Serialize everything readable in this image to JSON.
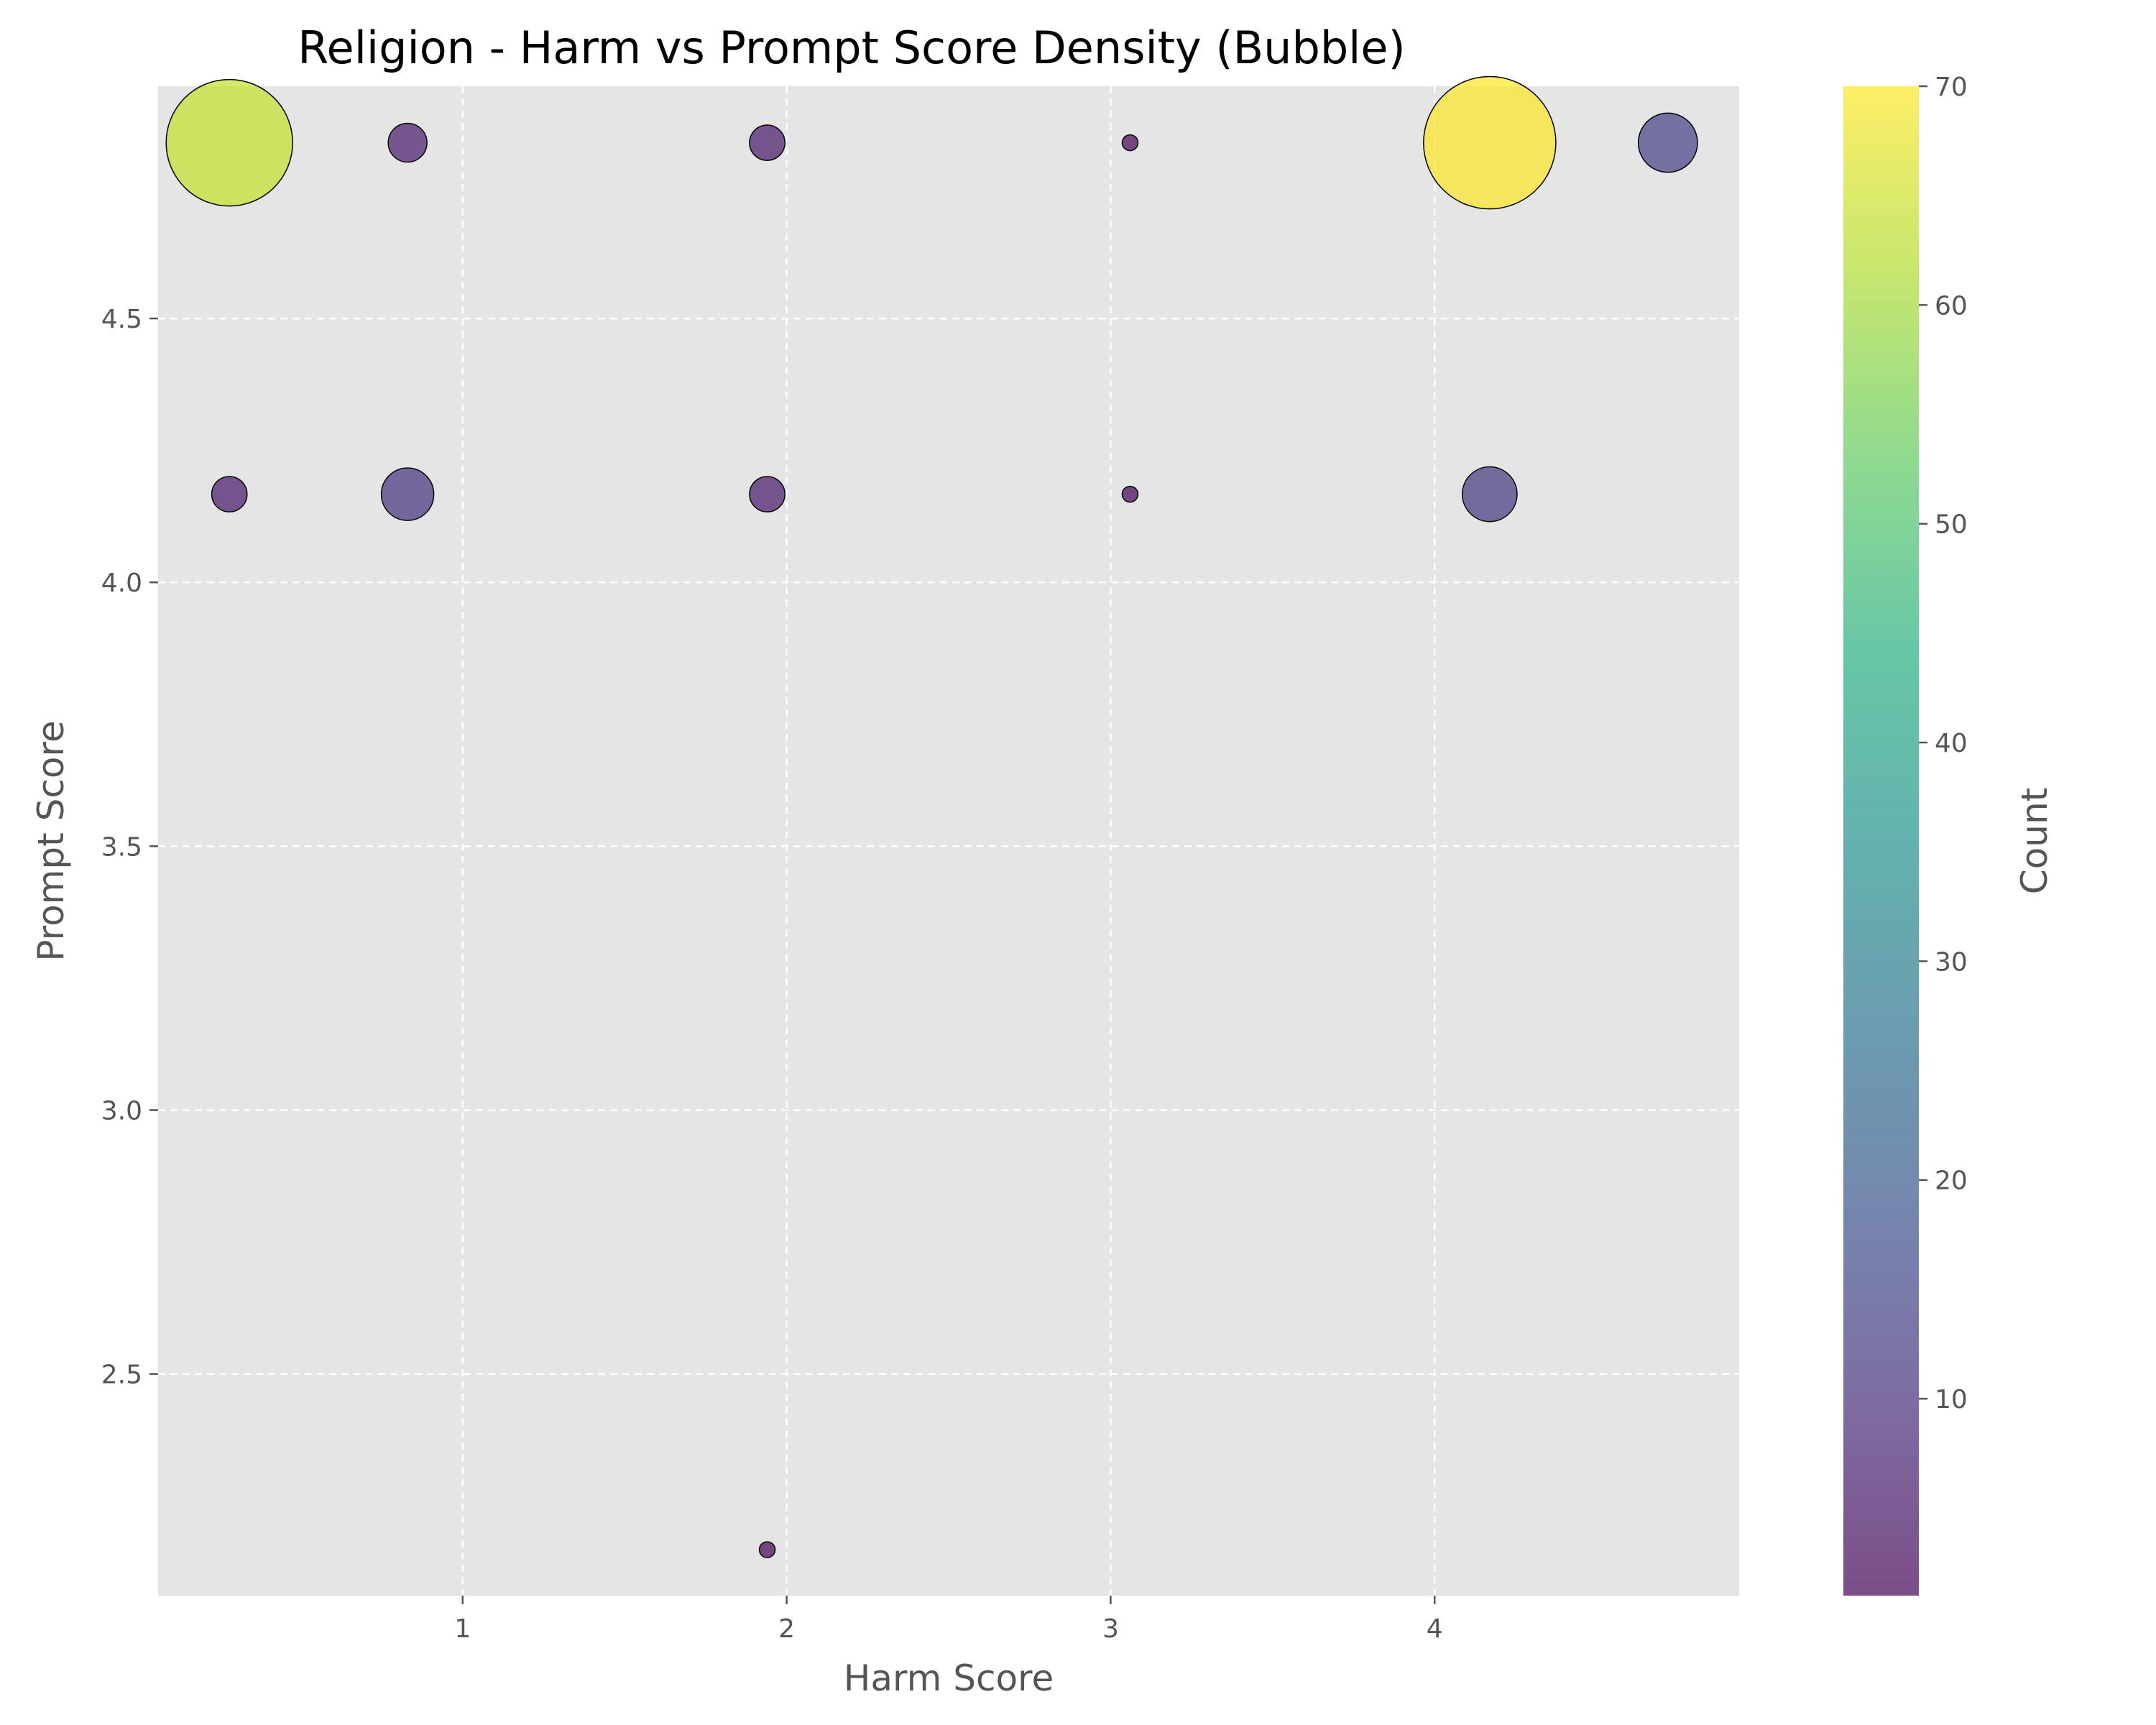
{
  "chart_data": {
    "type": "scatter",
    "title": "Religion - Harm vs Prompt Score Density (Bubble)",
    "xlabel": "Harm Score",
    "ylabel": "Prompt Score",
    "xlim": [
      0.06,
      4.94
    ],
    "ylim": [
      2.08,
      4.94
    ],
    "xticks": [
      1,
      2,
      3,
      4
    ],
    "yticks": [
      2.5,
      3.0,
      3.5,
      4.0,
      4.5
    ],
    "ytick_labels": [
      "2.5",
      "3.0",
      "3.5",
      "4.0",
      "4.5"
    ],
    "grid": true,
    "size_encodes": "Count",
    "colormap": "viridis",
    "colorbar": {
      "label": "Count",
      "range": [
        1,
        70
      ],
      "ticks": [
        10,
        20,
        30,
        40,
        50,
        60,
        70
      ]
    },
    "points": [
      {
        "x": 0.28,
        "y": 4.833,
        "count": 64
      },
      {
        "x": 0.83,
        "y": 4.833,
        "count": 6
      },
      {
        "x": 1.94,
        "y": 4.833,
        "count": 5
      },
      {
        "x": 3.06,
        "y": 4.833,
        "count": 1
      },
      {
        "x": 4.17,
        "y": 4.833,
        "count": 70
      },
      {
        "x": 4.72,
        "y": 4.833,
        "count": 14
      },
      {
        "x": 0.28,
        "y": 4.167,
        "count": 5
      },
      {
        "x": 0.83,
        "y": 4.167,
        "count": 11
      },
      {
        "x": 1.94,
        "y": 4.167,
        "count": 5
      },
      {
        "x": 3.06,
        "y": 4.167,
        "count": 1
      },
      {
        "x": 4.17,
        "y": 4.167,
        "count": 12
      },
      {
        "x": 1.94,
        "y": 2.167,
        "count": 1
      }
    ]
  }
}
